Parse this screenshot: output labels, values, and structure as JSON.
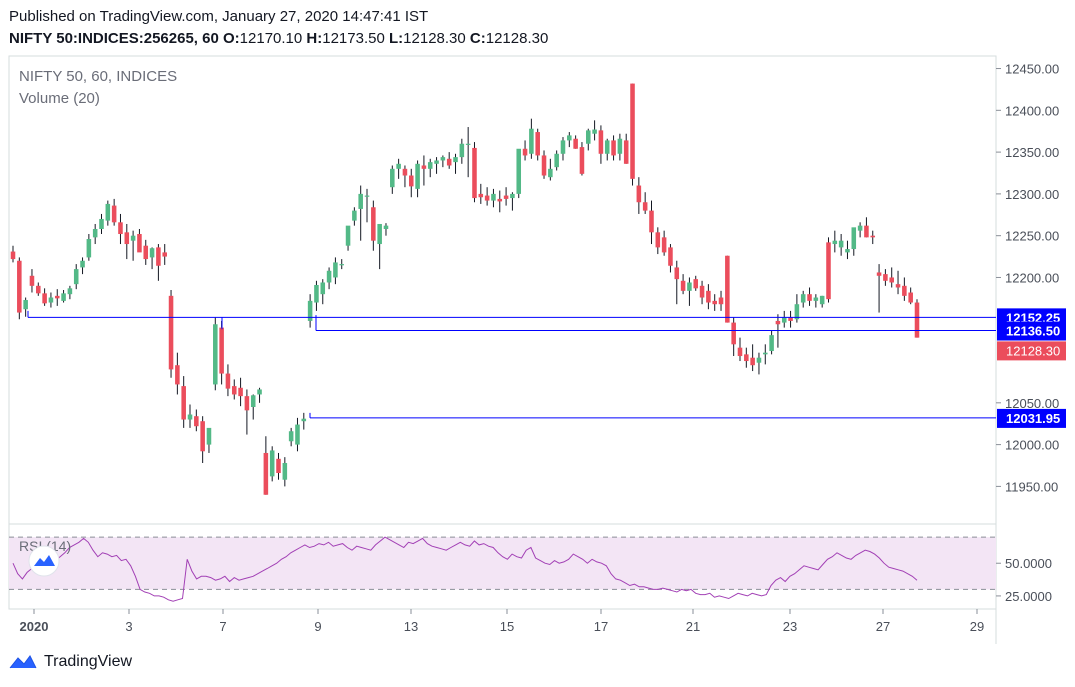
{
  "header": {
    "published": "Published on TradingView.com, January 27, 2020 14:47:41 IST",
    "symbol": "NIFTY 50:INDICES:256265, 60",
    "o_label": "O:",
    "o_value": "12170.10",
    "h_label": "H:",
    "h_value": "12173.50",
    "l_label": "L:",
    "l_value": "12128.30",
    "c_label": "C:",
    "c_value": "12128.30"
  },
  "footer": {
    "brand": "TradingView",
    "icon": "tradingview-logo-icon"
  },
  "colors": {
    "up": "#53b987",
    "down": "#eb4d5c",
    "line": "#0000ff",
    "rsi_line": "#a240b5",
    "rsi_band": "#f3e5f5",
    "grid_border": "#d6dcde"
  },
  "chart_data": [
    {
      "type": "candlestick",
      "title": "NIFTY 50, 60, INDICES",
      "subtitle": "Volume (20)",
      "ylim": [
        11905,
        12465
      ],
      "y_ticks": [
        "12450.00",
        "12400.00",
        "12350.00",
        "12300.00",
        "12250.00",
        "12200.00",
        "12050.00",
        "12000.00",
        "11950.00"
      ],
      "x_ticks": [
        "2020",
        "3",
        "7",
        "9",
        "13",
        "15",
        "17",
        "21",
        "23",
        "27",
        "29"
      ],
      "last_price": "12128.30",
      "horizontal_levels": [
        {
          "label": "12152.25",
          "value": 12152.25
        },
        {
          "label": "12136.50",
          "value": 12136.5
        },
        {
          "label": "12031.95",
          "value": 12031.95
        }
      ],
      "candles_ohlc": [
        [
          12231,
          12238,
          12218,
          12222
        ],
        [
          12220,
          12224,
          12150,
          12158
        ],
        [
          12162,
          12176,
          12153,
          12173
        ],
        [
          12202,
          12210,
          12182,
          12190
        ],
        [
          12190,
          12194,
          12178,
          12181
        ],
        [
          12181,
          12187,
          12166,
          12169
        ],
        [
          12170,
          12182,
          12164,
          12176
        ],
        [
          12178,
          12186,
          12166,
          12175
        ],
        [
          12172,
          12185,
          12170,
          12181
        ],
        [
          12180,
          12190,
          12174,
          12187
        ],
        [
          12192,
          12216,
          12186,
          12210
        ],
        [
          12212,
          12224,
          12204,
          12220
        ],
        [
          12224,
          12252,
          12220,
          12246
        ],
        [
          12248,
          12264,
          12240,
          12258
        ],
        [
          12258,
          12276,
          12252,
          12270
        ],
        [
          12268,
          12292,
          12262,
          12288
        ],
        [
          12286,
          12294,
          12262,
          12266
        ],
        [
          12266,
          12276,
          12240,
          12252
        ],
        [
          12254,
          12264,
          12222,
          12240
        ],
        [
          12244,
          12256,
          12220,
          12250
        ],
        [
          12252,
          12258,
          12232,
          12230
        ],
        [
          12238,
          12245,
          12215,
          12222
        ],
        [
          12224,
          12236,
          12210,
          12235
        ],
        [
          12236,
          12240,
          12196,
          12214
        ],
        [
          12230,
          12240,
          12215,
          12225
        ],
        [
          12178,
          12185,
          12080,
          12090
        ],
        [
          12095,
          12110,
          12060,
          12072
        ],
        [
          12070,
          12082,
          12020,
          12030
        ],
        [
          12030,
          12048,
          12020,
          12036
        ],
        [
          12034,
          12042,
          12016,
          12022
        ],
        [
          12028,
          12034,
          11978,
          11992
        ],
        [
          12000,
          12018,
          11990,
          12020
        ],
        [
          12072,
          12152,
          12065,
          12144
        ],
        [
          12140,
          12148,
          12072,
          12085
        ],
        [
          12085,
          12096,
          12058,
          12067
        ],
        [
          12070,
          12078,
          12054,
          12060
        ],
        [
          12068,
          12080,
          12046,
          12058
        ],
        [
          12058,
          12066,
          12012,
          12041
        ],
        [
          12045,
          12060,
          12030,
          12059
        ],
        [
          12060,
          12068,
          12050,
          12066
        ],
        [
          11990,
          12010,
          11940,
          11940
        ],
        [
          11962,
          11998,
          11956,
          11993
        ],
        [
          11983,
          11990,
          11958,
          11966
        ],
        [
          11958,
          11985,
          11950,
          11978
        ],
        [
          12004,
          12020,
          11998,
          12016
        ],
        [
          12000,
          12032,
          11992,
          12024
        ],
        [
          12028,
          12038,
          12018,
          12031
        ],
        [
          12148,
          12180,
          12140,
          12172
        ],
        [
          12170,
          12196,
          12160,
          12191
        ],
        [
          12180,
          12198,
          12168,
          12194
        ],
        [
          12194,
          12212,
          12186,
          12208
        ],
        [
          12200,
          12224,
          12192,
          12218
        ],
        [
          12216,
          12222,
          12210,
          12216
        ],
        [
          12238,
          12255,
          12232,
          12262
        ],
        [
          12268,
          12284,
          12262,
          12280
        ],
        [
          12282,
          12310,
          12244,
          12300
        ],
        [
          12298,
          12306,
          12266,
          12298
        ],
        [
          12284,
          12292,
          12232,
          12244
        ],
        [
          12240,
          12248,
          12210,
          12264
        ],
        [
          12258,
          12265,
          12250,
          12262
        ],
        [
          12308,
          12334,
          12300,
          12330
        ],
        [
          12330,
          12342,
          12318,
          12336
        ],
        [
          12330,
          12334,
          12308,
          12322
        ],
        [
          12322,
          12330,
          12296,
          12309
        ],
        [
          12306,
          12340,
          12296,
          12336
        ],
        [
          12334,
          12346,
          12310,
          12330
        ],
        [
          12330,
          12342,
          12320,
          12338
        ],
        [
          12336,
          12344,
          12324,
          12340
        ],
        [
          12340,
          12346,
          12332,
          12344
        ],
        [
          12342,
          12350,
          12330,
          12334
        ],
        [
          12338,
          12348,
          12324,
          12344
        ],
        [
          12344,
          12366,
          12336,
          12360
        ],
        [
          12360,
          12380,
          12320,
          12360
        ],
        [
          12355,
          12362,
          12290,
          12295
        ],
        [
          12300,
          12312,
          12288,
          12296
        ],
        [
          12298,
          12308,
          12286,
          12292
        ],
        [
          12292,
          12306,
          12284,
          12300
        ],
        [
          12294,
          12304,
          12278,
          12291
        ],
        [
          12298,
          12308,
          12286,
          12294
        ],
        [
          12295,
          12302,
          12280,
          12300
        ],
        [
          12300,
          12316,
          12295,
          12354
        ],
        [
          12354,
          12364,
          12340,
          12346
        ],
        [
          12348,
          12390,
          12342,
          12378
        ],
        [
          12374,
          12378,
          12340,
          12346
        ],
        [
          12346,
          12352,
          12318,
          12322
        ],
        [
          12320,
          12342,
          12316,
          12330
        ],
        [
          12332,
          12352,
          12328,
          12348
        ],
        [
          12348,
          12368,
          12340,
          12364
        ],
        [
          12364,
          12374,
          12356,
          12370
        ],
        [
          12366,
          12370,
          12354,
          12354
        ],
        [
          12356,
          12362,
          12322,
          12324
        ],
        [
          12360,
          12378,
          12352,
          12376
        ],
        [
          12372,
          12388,
          12364,
          12377
        ],
        [
          12376,
          12382,
          12336,
          12348
        ],
        [
          12348,
          12366,
          12340,
          12364
        ],
        [
          12364,
          12370,
          12340,
          12346
        ],
        [
          12348,
          12372,
          12340,
          12366
        ],
        [
          12364,
          12372,
          12336,
          12336
        ],
        [
          12432,
          12432,
          12310,
          12318
        ],
        [
          12310,
          12320,
          12276,
          12290
        ],
        [
          12290,
          12302,
          12276,
          12280
        ],
        [
          12280,
          12292,
          12240,
          12254
        ],
        [
          12254,
          12260,
          12228,
          12236
        ],
        [
          12248,
          12256,
          12226,
          12230
        ],
        [
          12236,
          12240,
          12206,
          12214
        ],
        [
          12212,
          12220,
          12168,
          12198
        ],
        [
          12196,
          12204,
          12180,
          12184
        ],
        [
          12184,
          12200,
          12166,
          12194
        ],
        [
          12198,
          12202,
          12184,
          12187
        ],
        [
          12190,
          12196,
          12168,
          12176
        ],
        [
          12184,
          12192,
          12162,
          12170
        ],
        [
          12172,
          12180,
          12160,
          12168
        ],
        [
          12176,
          12184,
          12160,
          12168
        ],
        [
          12226,
          12226,
          12146,
          12146
        ],
        [
          12146,
          12152,
          12106,
          12120
        ],
        [
          12116,
          12128,
          12100,
          12106
        ],
        [
          12108,
          12116,
          12092,
          12100
        ],
        [
          12104,
          12120,
          12088,
          12095
        ],
        [
          12098,
          12110,
          12084,
          12104
        ],
        [
          12108,
          12120,
          12096,
          12110
        ],
        [
          12112,
          12136,
          12108,
          12131
        ],
        [
          12148,
          12156,
          12116,
          12144
        ],
        [
          12146,
          12160,
          12140,
          12152
        ],
        [
          12152,
          12160,
          12140,
          12148
        ],
        [
          12150,
          12180,
          12146,
          12168
        ],
        [
          12170,
          12184,
          12164,
          12180
        ],
        [
          12180,
          12188,
          12166,
          12172
        ],
        [
          12172,
          12180,
          12164,
          12176
        ],
        [
          12168,
          12178,
          12164,
          12178
        ],
        [
          12242,
          12248,
          12170,
          12174
        ],
        [
          12240,
          12256,
          12230,
          12244
        ],
        [
          12236,
          12252,
          12226,
          12244
        ],
        [
          12230,
          12244,
          12222,
          12234
        ],
        [
          12234,
          12248,
          12226,
          12260
        ],
        [
          12256,
          12266,
          12248,
          12262
        ],
        [
          12262,
          12272,
          12248,
          12248
        ],
        [
          12250,
          12256,
          12240,
          12248
        ],
        [
          12206,
          12216,
          12158,
          12202
        ],
        [
          12204,
          12210,
          12190,
          12196
        ],
        [
          12200,
          12212,
          12188,
          12194
        ],
        [
          12192,
          12208,
          12180,
          12188
        ],
        [
          12190,
          12200,
          12172,
          12178
        ],
        [
          12182,
          12188,
          12168,
          12170
        ],
        [
          12170,
          12174,
          12128,
          12128
        ]
      ]
    },
    {
      "type": "line",
      "title": "RSI (14)",
      "ylim": [
        15,
        80
      ],
      "y_ticks": [
        "50.0000",
        "25.0000"
      ],
      "bands": [
        70,
        30
      ],
      "values": [
        50,
        42,
        38,
        43,
        46,
        44,
        45,
        47,
        49,
        52,
        55,
        58,
        62,
        64,
        66,
        69,
        66,
        60,
        55,
        58,
        57,
        55,
        56,
        52,
        53,
        48,
        40,
        30,
        28,
        27,
        25,
        25,
        24,
        22,
        21,
        22,
        23,
        53,
        44,
        38,
        40,
        40,
        39,
        37,
        38,
        40,
        36,
        39,
        37,
        38,
        39,
        40,
        42,
        44,
        46,
        48,
        50,
        53,
        55,
        58,
        60,
        62,
        64,
        62,
        63,
        65,
        64,
        66,
        63,
        64,
        65,
        62,
        60,
        63,
        62,
        61,
        60,
        64,
        67,
        70,
        68,
        66,
        64,
        62,
        66,
        65,
        67,
        69,
        65,
        63,
        62,
        61,
        60,
        62,
        64,
        66,
        64,
        63,
        67,
        64,
        65,
        63,
        62,
        58,
        55,
        53,
        57,
        55,
        54,
        60,
        62,
        54,
        52,
        50,
        49,
        52,
        50,
        51,
        53,
        57,
        55,
        53,
        50,
        53,
        51,
        50,
        48,
        42,
        38,
        37,
        35,
        33,
        34,
        32,
        32,
        31,
        30,
        30,
        31,
        30,
        29,
        28,
        30,
        29,
        30,
        27,
        26,
        26,
        27,
        24,
        25,
        24,
        23,
        25,
        27,
        26,
        25,
        27,
        26,
        25,
        26,
        33,
        37,
        39,
        36,
        40,
        42,
        45,
        48,
        47,
        46,
        45,
        49,
        53,
        55,
        58,
        56,
        54,
        53,
        56,
        58,
        60,
        59,
        57,
        54,
        50,
        47,
        46,
        45,
        44,
        42,
        40,
        37
      ]
    }
  ]
}
